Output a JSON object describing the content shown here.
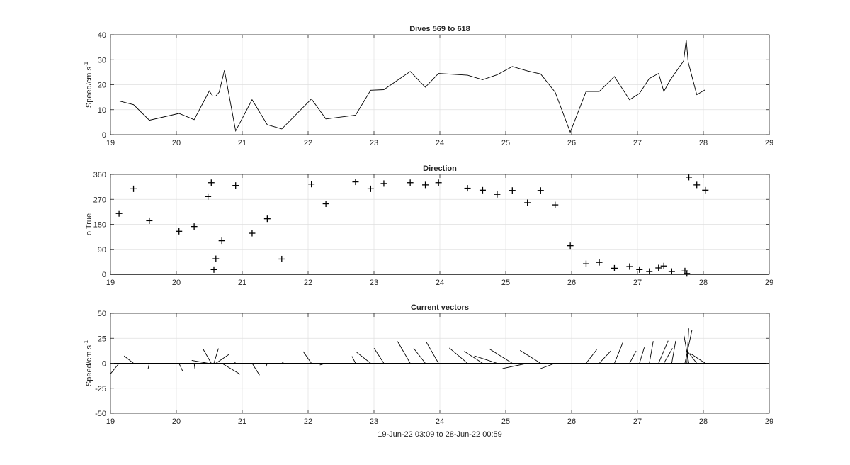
{
  "figure": {
    "xlabel": "19-Jun-22 03:09 to 28-Jun-22 00:59",
    "colors": {
      "line": "#000000",
      "axes": "#262626",
      "grid": "#dfdfdf",
      "background": "#ffffff"
    }
  },
  "chart_data": [
    {
      "type": "line",
      "title": "Dives 569 to 618",
      "ylabel": "Speed/cm s",
      "ylabel_sup": "-1",
      "xlim": [
        19,
        29
      ],
      "ylim": [
        0,
        40
      ],
      "xticks": [
        19,
        20,
        21,
        22,
        23,
        24,
        25,
        26,
        27,
        28,
        29
      ],
      "yticks": [
        0,
        10,
        20,
        30,
        40
      ],
      "grid": true,
      "series": [
        {
          "x": [
            19.13,
            19.35,
            19.59,
            20.04,
            20.27,
            20.5,
            20.55,
            20.6,
            20.65,
            20.73,
            20.9,
            21.15,
            21.38,
            21.6,
            22.05,
            22.27,
            22.72,
            22.95,
            23.15,
            23.55,
            23.78,
            23.98,
            24.42,
            24.65,
            24.87,
            25.1,
            25.33,
            25.53,
            25.75,
            25.98,
            26.22,
            26.42,
            26.65,
            26.88,
            27.03,
            27.18,
            27.32,
            27.4,
            27.5,
            27.7,
            27.74,
            27.77,
            27.9,
            28.03
          ],
          "y": [
            13.5,
            12,
            5.8,
            8.5,
            6,
            17.5,
            15.5,
            15.5,
            17,
            25.8,
            1.5,
            14,
            4,
            2.3,
            14.3,
            6.3,
            7.8,
            17.8,
            18,
            25.3,
            19,
            24.5,
            23.8,
            22,
            24,
            27.3,
            25.5,
            24.3,
            17,
            1,
            17.3,
            17.3,
            23.3,
            14,
            16.5,
            22.5,
            24.5,
            17.3,
            22,
            29.5,
            38,
            29,
            16,
            18
          ]
        }
      ]
    },
    {
      "type": "scatter",
      "title": "Direction",
      "ylabel": "o True",
      "xlim": [
        19,
        29
      ],
      "ylim": [
        0,
        360
      ],
      "xticks": [
        19,
        20,
        21,
        22,
        23,
        24,
        25,
        26,
        27,
        28,
        29
      ],
      "yticks": [
        0,
        90,
        180,
        270,
        360
      ],
      "grid": true,
      "marker": "+",
      "series": [
        {
          "x": [
            19.13,
            19.35,
            19.59,
            20.04,
            20.27,
            20.48,
            20.53,
            20.57,
            20.6,
            20.69,
            20.9,
            21.15,
            21.38,
            21.6,
            22.05,
            22.27,
            22.72,
            22.95,
            23.15,
            23.55,
            23.78,
            23.98,
            24.42,
            24.65,
            24.87,
            25.1,
            25.33,
            25.53,
            25.75,
            25.98,
            26.22,
            26.42,
            26.65,
            26.88,
            27.03,
            27.18,
            27.32,
            27.4,
            27.52,
            27.72,
            27.75,
            27.78,
            27.9,
            28.03
          ],
          "y": [
            219,
            308,
            193,
            155,
            172,
            280,
            330,
            17,
            56,
            121,
            320,
            148,
            200,
            55,
            325,
            254,
            333,
            308,
            327,
            330,
            322,
            330,
            310,
            303,
            288,
            302,
            258,
            302,
            250,
            103,
            38,
            43,
            22,
            28,
            17,
            10,
            23,
            30,
            10,
            12,
            3,
            350,
            322,
            303
          ]
        }
      ]
    },
    {
      "type": "vector",
      "title": "Current vectors",
      "ylabel": "Speed/cm s",
      "ylabel_sup": "-1",
      "xlim": [
        19,
        29
      ],
      "ylim": [
        -50,
        50
      ],
      "xticks": [
        19,
        20,
        21,
        22,
        23,
        24,
        25,
        26,
        27,
        28,
        29
      ],
      "yticks": [
        -50,
        -25,
        0,
        25,
        50
      ],
      "grid": true,
      "zero_line": true,
      "note": "each stick starts at (time, 0) and points in the current direction (degrees True, north up) with length equal to speed",
      "series_ref": "uses x, speed and direction from the two panels above"
    }
  ]
}
